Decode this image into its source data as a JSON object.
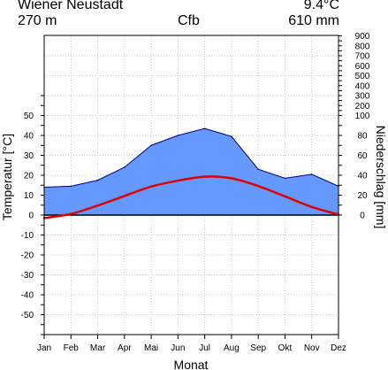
{
  "header": {
    "station": "Wiener Neustadt",
    "annual_temp": "9.4°C",
    "elevation": "270 m",
    "climate_class": "Cfb",
    "annual_precip": "610 mm"
  },
  "chart_data": {
    "type": "line",
    "categories": [
      "Jan",
      "Feb",
      "Mar",
      "Apr",
      "Mai",
      "Jun",
      "Jul",
      "Aug",
      "Sep",
      "Okt",
      "Nov",
      "Dez"
    ],
    "xlabel": "Monat",
    "ylabel_left": "Temperatur [°C]",
    "ylabel_right": "Niederschlag [mm]",
    "temp_ylim": [
      -60,
      60
    ],
    "left_ticks": [
      "50",
      "40",
      "30",
      "20",
      "10",
      "0",
      "-10",
      "-20",
      "-30",
      "-40",
      "-50"
    ],
    "right_ticks": [
      "900",
      "800",
      "700",
      "600",
      "500",
      "400",
      "300",
      "200",
      "100",
      "80",
      "60",
      "40",
      "20",
      "0"
    ],
    "grid": true,
    "series": [
      {
        "key": "precip",
        "values": [
          28,
          29,
          35,
          48,
          70,
          80,
          87,
          79,
          46,
          37,
          41,
          29
        ],
        "fill_color": "#6699ff",
        "line_color": "#000080"
      },
      {
        "key": "temp",
        "values": [
          -1.5,
          0.6,
          4.8,
          9.6,
          14.3,
          17.3,
          19.3,
          18.5,
          14.6,
          9.4,
          4.1,
          0.3
        ],
        "line_color": "#dd0000"
      }
    ]
  }
}
